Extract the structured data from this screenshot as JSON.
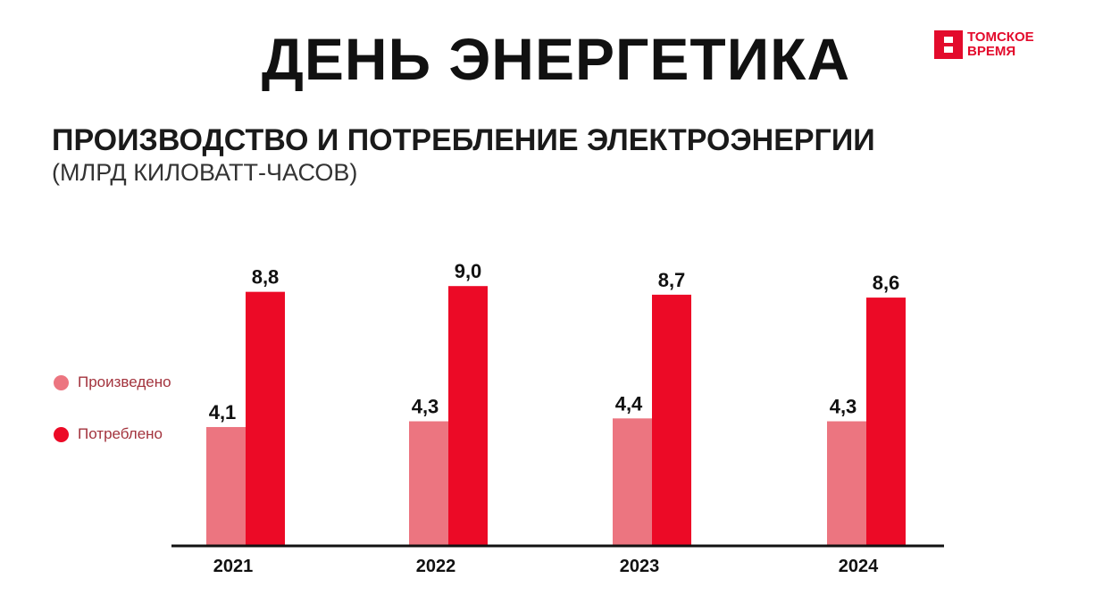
{
  "header": {
    "title": "ДЕНЬ ЭНЕРГЕТИКА",
    "logo_line1": "ТОМСКОЕ",
    "logo_line2": "ВРЕМЯ"
  },
  "chart_data": {
    "type": "bar",
    "title": "ПРОИЗВОДСТВО И ПОТРЕБЛЕНИЕ ЭЛЕКТРОЭНЕРГИИ",
    "subtitle": "(МЛРД КИЛОВАТТ-ЧАСОВ)",
    "categories": [
      "2021",
      "2022",
      "2023",
      "2024"
    ],
    "series": [
      {
        "name": "Произведено",
        "values": [
          4.1,
          4.3,
          4.4,
          4.3
        ],
        "labels": [
          "4,1",
          "4,3",
          "4,4",
          "4,3"
        ],
        "color": "#ec7580"
      },
      {
        "name": "Потреблено",
        "values": [
          8.8,
          9.0,
          8.7,
          8.6
        ],
        "labels": [
          "8,8",
          "9,0",
          "8,7",
          "8,6"
        ],
        "color": "#ec0a26"
      }
    ],
    "ylim": [
      0,
      9.5
    ],
    "legend": "left"
  }
}
